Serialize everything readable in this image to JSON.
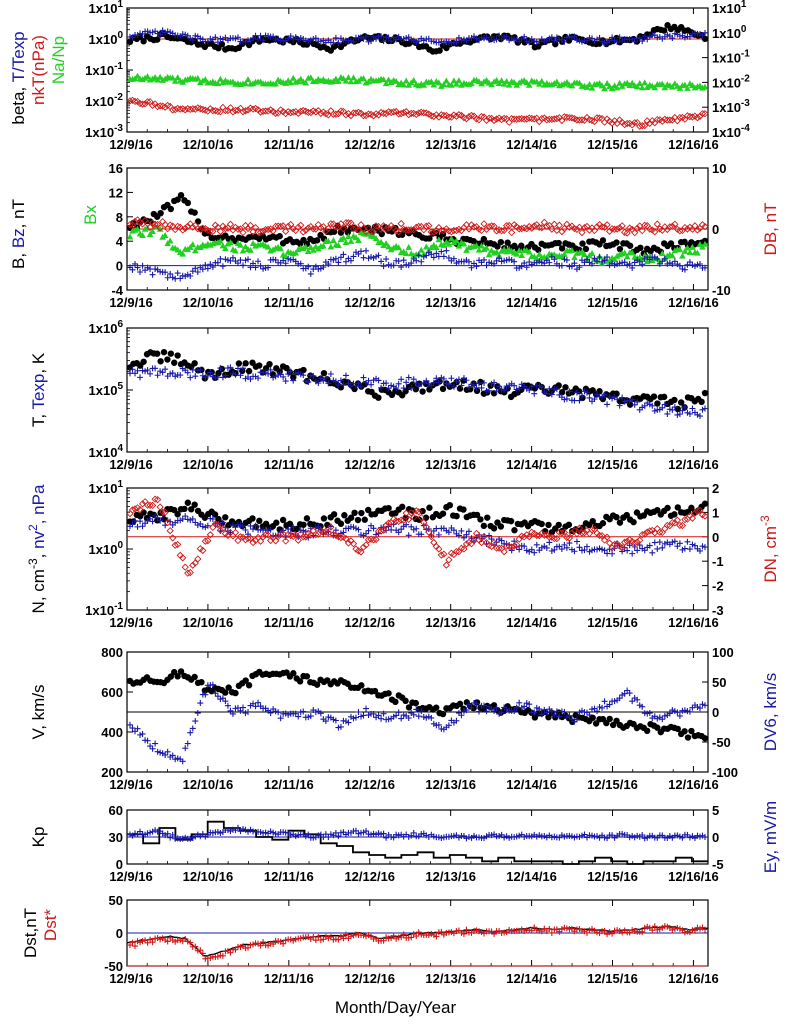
{
  "figure": {
    "x_title": "Month/Day/Year",
    "x_ticks": [
      "12/9/16",
      "12/10/16",
      "12/11/16",
      "12/12/16",
      "12/13/16",
      "12/14/16",
      "12/15/16",
      "12/16/16"
    ]
  },
  "colors": {
    "black": "#000000",
    "blue": "#1a1aa8",
    "red": "#d01818",
    "green": "#22d022"
  },
  "chart_data": [
    {
      "type": "scatter",
      "panel": "beta-temperature-ratio",
      "x_range": [
        "12/9/16",
        "12/16/16 ~04:00"
      ],
      "left_axis": {
        "scale": "log",
        "ticks": [
          "1x10-3",
          "1x10-2",
          "1x10-1",
          "1x100",
          "1x101"
        ],
        "ylim": [
          0.001,
          10
        ]
      },
      "right_axis": {
        "scale": "log",
        "ticks": [
          "1x10-4",
          "1x10-3",
          "1x10-2",
          "1x10-1",
          "1x100",
          "1x101"
        ],
        "ylim": [
          0.0001,
          10
        ]
      },
      "ylabel_parts": [
        {
          "text": "beta, ",
          "color": "black"
        },
        {
          "text": "T/Texp",
          "color": "blue"
        }
      ],
      "ylabel2_parts": [
        {
          "text": "nkT(nPa)",
          "color": "red"
        }
      ],
      "ylabel3_parts": [
        {
          "text": "Na/Np",
          "color": "green"
        }
      ],
      "reference_lines": [
        {
          "axis": "left",
          "value": 1,
          "color": "red"
        }
      ],
      "series": [
        {
          "marker": "dot",
          "color": "black",
          "axis": "left",
          "generator": "beta",
          "values": [
            0.9,
            1.2,
            0.7,
            0.5,
            1.0,
            0.8,
            0.5,
            1.1,
            0.9,
            0.4,
            0.9,
            1.2,
            0.6,
            1.0,
            0.8,
            1.0,
            2.5,
            1.1
          ]
        },
        {
          "marker": "plus",
          "color": "blue",
          "axis": "left",
          "generator": "tratio",
          "values": [
            1.3,
            1.6,
            1.0,
            0.9,
            1.1,
            1.0,
            0.9,
            1.0,
            1.0,
            0.8,
            1.0,
            1.1,
            0.9,
            1.0,
            0.9,
            1.0,
            1.2,
            1.3
          ]
        },
        {
          "marker": "triangle",
          "color": "green",
          "axis": "left",
          "generator": "nanp",
          "values": [
            0.055,
            0.05,
            0.045,
            0.042,
            0.04,
            0.045,
            0.05,
            0.045,
            0.04,
            0.035,
            0.04,
            0.038,
            0.04,
            0.035,
            0.03,
            0.032,
            0.03,
            0.03
          ]
        },
        {
          "marker": "diamond",
          "color": "red",
          "axis": "right",
          "generator": "nkt",
          "values": [
            0.002,
            0.001,
            0.0008,
            0.0008,
            0.0007,
            0.0006,
            0.0006,
            0.0005,
            0.0006,
            0.0005,
            0.0004,
            0.0003,
            0.0003,
            0.00035,
            0.0003,
            0.0002,
            0.0003,
            0.0005
          ]
        }
      ]
    },
    {
      "type": "scatter",
      "panel": "magnetic-field",
      "x_range": [
        "12/9/16",
        "12/16/16 ~04:00"
      ],
      "left_axis": {
        "scale": "linear",
        "ticks": [
          "-4",
          "0",
          "4",
          "8",
          "12",
          "16"
        ],
        "ylim": [
          -4,
          16
        ]
      },
      "right_axis": {
        "scale": "linear",
        "ticks": [
          "-10",
          "0",
          "10"
        ],
        "ylim": [
          -10,
          10
        ]
      },
      "ylabel_parts": [
        {
          "text": "B, ",
          "color": "black"
        },
        {
          "text": "Bz",
          "color": "blue"
        },
        {
          "text": ", nT",
          "color": "black"
        }
      ],
      "ylabel2_parts": [
        {
          "text": "Bx",
          "color": "green"
        }
      ],
      "right_label_parts": [
        {
          "text": "DB, nT",
          "color": "red"
        }
      ],
      "reference_lines": [
        {
          "axis": "left",
          "value": 0,
          "color": "blue"
        },
        {
          "axis": "left",
          "value": 6,
          "color": "red"
        }
      ],
      "series": [
        {
          "marker": "dot",
          "color": "black",
          "axis": "left",
          "values": [
            6.5,
            8,
            11,
            5,
            4.5,
            4.5,
            4.2,
            4,
            6,
            5.5,
            6,
            5,
            4.5,
            4,
            3.5,
            3,
            3.2,
            3,
            3.5,
            3,
            2.5,
            3.5,
            4
          ]
        },
        {
          "marker": "triangle",
          "color": "green",
          "axis": "left",
          "values": [
            5,
            6,
            2,
            4,
            3,
            3,
            2,
            3,
            4,
            5,
            3,
            2,
            4,
            3,
            2,
            2,
            1.5,
            2,
            1,
            2,
            1,
            2,
            3
          ]
        },
        {
          "marker": "plus",
          "color": "blue",
          "axis": "left",
          "values": [
            0,
            -1,
            -2,
            0,
            1,
            0,
            1,
            -1,
            1,
            2,
            0,
            1,
            2,
            0,
            1,
            0,
            1,
            0,
            1,
            0,
            1,
            0,
            0
          ]
        },
        {
          "marker": "diamond",
          "color": "red",
          "axis": "right",
          "values": [
            1,
            0.5,
            0.5,
            0.2,
            0.1,
            0,
            0.2,
            0.1,
            0.5,
            0.2,
            0.2,
            0.3,
            0,
            0.2,
            0.3,
            0,
            0.5,
            0,
            0.3,
            0,
            0.2,
            0.3,
            0.2
          ]
        }
      ]
    },
    {
      "type": "scatter",
      "panel": "temperature",
      "x_range": [
        "12/9/16",
        "12/16/16 ~04:00"
      ],
      "left_axis": {
        "scale": "log",
        "ticks": [
          "1x104",
          "1x105",
          "1x106"
        ],
        "ylim": [
          10000,
          1000000
        ]
      },
      "ylabel_parts": [
        {
          "text": "T, ",
          "color": "black"
        },
        {
          "text": "Texp",
          "color": "blue"
        },
        {
          "text": ", K",
          "color": "black"
        }
      ],
      "series": [
        {
          "marker": "dot",
          "color": "black",
          "axis": "left",
          "values": [
            250000,
            350000,
            300000,
            180000,
            200000,
            250000,
            200000,
            170000,
            150000,
            110000,
            90000,
            100000,
            120000,
            130000,
            110000,
            90000,
            100000,
            100000,
            90000,
            80000,
            70000,
            70000,
            60000,
            80000
          ]
        },
        {
          "marker": "plus",
          "color": "blue",
          "axis": "left",
          "values": [
            200000,
            190000,
            180000,
            190000,
            190000,
            180000,
            170000,
            160000,
            150000,
            140000,
            130000,
            130000,
            130000,
            130000,
            120000,
            110000,
            100000,
            90000,
            80000,
            70000,
            60000,
            50000,
            45000,
            45000
          ]
        }
      ]
    },
    {
      "type": "scatter",
      "panel": "density",
      "x_range": [
        "12/9/16",
        "12/16/16 ~04:00"
      ],
      "left_axis": {
        "scale": "log",
        "ticks": [
          "1x10-1",
          "1x100",
          "1x101"
        ],
        "ylim": [
          0.1,
          10
        ]
      },
      "right_axis": {
        "scale": "linear",
        "ticks": [
          "-3",
          "-2",
          "-1",
          "0",
          "1",
          "2"
        ],
        "ylim": [
          -3,
          2
        ]
      },
      "ylabel_parts": [
        {
          "text": "N, cm",
          "color": "black"
        },
        {
          "text": "-3",
          "color": "black",
          "sup": true
        },
        {
          "text": ", ",
          "color": "black"
        },
        {
          "text": "nv",
          "color": "blue"
        },
        {
          "text": "2",
          "color": "blue",
          "sup": true
        },
        {
          "text": ", nPa",
          "color": "blue"
        }
      ],
      "right_label_parts": [
        {
          "text": "DN, cm",
          "color": "red"
        },
        {
          "text": "-3",
          "color": "red",
          "sup": true
        }
      ],
      "reference_lines": [
        {
          "axis": "right",
          "value": 0,
          "color": "red"
        }
      ],
      "series": [
        {
          "marker": "dot",
          "color": "black",
          "axis": "left",
          "values": [
            3,
            3.5,
            5,
            3,
            2.8,
            2.5,
            2.6,
            3,
            3.5,
            4.5,
            3.5,
            4.5,
            3,
            2.5,
            2.5,
            2,
            2.5,
            3,
            3.5,
            4,
            4.5
          ]
        },
        {
          "marker": "plus",
          "color": "blue",
          "axis": "left",
          "values": [
            2.5,
            3,
            3,
            2.5,
            2,
            2,
            1.8,
            2,
            2,
            2.2,
            2,
            2,
            1.5,
            1.2,
            1,
            1.2,
            1,
            1,
            1,
            1.2,
            1
          ]
        },
        {
          "marker": "diamond",
          "color": "red",
          "axis": "right",
          "values": [
            1,
            1.5,
            -1.5,
            0.5,
            -0.2,
            0,
            0,
            0.3,
            -0.5,
            0.5,
            1,
            -1,
            0,
            -0.5,
            0.2,
            0,
            0.3,
            -0.5,
            0.2,
            0.5,
            1
          ]
        }
      ]
    },
    {
      "type": "scatter",
      "panel": "velocity",
      "x_range": [
        "12/9/16",
        "12/16/16 ~04:00"
      ],
      "left_axis": {
        "scale": "linear",
        "ticks": [
          "200",
          "400",
          "600",
          "800"
        ],
        "ylim": [
          200,
          800
        ]
      },
      "right_axis": {
        "scale": "linear",
        "ticks": [
          "-100",
          "-50",
          "0",
          "50",
          "100"
        ],
        "ylim": [
          -100,
          100
        ]
      },
      "ylabel_parts": [
        {
          "text": "V, km/s",
          "color": "black"
        }
      ],
      "right_label_parts": [
        {
          "text": "DV6, km/s",
          "color": "blue"
        }
      ],
      "reference_lines": [
        {
          "axis": "right",
          "value": 0,
          "color": "black"
        }
      ],
      "series": [
        {
          "marker": "dot",
          "color": "black",
          "axis": "left",
          "values": [
            660,
            650,
            700,
            610,
            600,
            690,
            680,
            660,
            640,
            620,
            580,
            520,
            500,
            540,
            520,
            500,
            480,
            470,
            460,
            440,
            420,
            400,
            380
          ]
        },
        {
          "marker": "plus",
          "color": "blue",
          "axis": "right",
          "values": [
            -20,
            -60,
            -80,
            50,
            0,
            10,
            -10,
            0,
            -20,
            0,
            -10,
            0,
            -30,
            10,
            0,
            10,
            0,
            -10,
            10,
            30,
            -10,
            0,
            10
          ]
        }
      ]
    },
    {
      "type": "line",
      "panel": "kp-ey",
      "x_range": [
        "12/9/16",
        "12/16/16 ~04:00"
      ],
      "left_axis": {
        "scale": "linear",
        "ticks": [
          "0",
          "30",
          "60"
        ],
        "ylim": [
          0,
          60
        ]
      },
      "right_axis": {
        "scale": "linear",
        "ticks": [
          "-5",
          "0",
          "5"
        ],
        "ylim": [
          -5,
          5
        ]
      },
      "ylabel_parts": [
        {
          "text": "Kp",
          "color": "black"
        }
      ],
      "right_label_parts": [
        {
          "text": "Ey, mV/m",
          "color": "blue"
        }
      ],
      "reference_lines": [
        {
          "axis": "right",
          "value": 0,
          "color": "blue"
        }
      ],
      "series": [
        {
          "marker": "step",
          "color": "black",
          "axis": "left",
          "values": [
            33,
            23,
            40,
            27,
            33,
            47,
            40,
            37,
            30,
            27,
            37,
            33,
            23,
            20,
            13,
            10,
            7,
            10,
            13,
            7,
            10,
            7,
            3,
            7,
            3,
            3,
            3,
            0,
            3,
            7,
            3,
            0,
            3,
            3,
            7,
            3
          ]
        },
        {
          "marker": "plus",
          "color": "blue",
          "axis": "right",
          "values": [
            0.5,
            1,
            -0.5,
            0.5,
            1.5,
            1,
            0.5,
            0,
            0.5,
            1,
            0,
            0.5,
            0,
            0,
            0.2,
            0.1,
            0,
            0.2,
            0,
            0.3,
            0,
            0.2,
            0
          ]
        }
      ]
    },
    {
      "type": "line",
      "panel": "dst",
      "x_range": [
        "12/9/16",
        "12/16/16 ~04:00"
      ],
      "left_axis": {
        "scale": "linear",
        "ticks": [
          "-50",
          "0",
          "50"
        ],
        "ylim": [
          -50,
          50
        ]
      },
      "ylabel_parts": [
        {
          "text": "Dst,nT",
          "color": "black"
        }
      ],
      "ylabel2_parts": [
        {
          "text": "Dst*",
          "color": "red"
        }
      ],
      "reference_lines": [
        {
          "axis": "left",
          "value": 0,
          "color": "blue"
        },
        {
          "axis": "left",
          "value": -50,
          "color": "red"
        }
      ],
      "series": [
        {
          "marker": "line",
          "color": "black",
          "axis": "left",
          "values": [
            -15,
            -10,
            -5,
            -8,
            -35,
            -28,
            -18,
            -15,
            -12,
            -8,
            -5,
            -5,
            0,
            -8,
            -5,
            0,
            0,
            3,
            5,
            2,
            5,
            8,
            5,
            8,
            5,
            3,
            5,
            8,
            10,
            5,
            8
          ]
        },
        {
          "marker": "plus",
          "color": "red",
          "axis": "left",
          "values": [
            -18,
            -12,
            -10,
            -12,
            -38,
            -30,
            -20,
            -17,
            -14,
            -10,
            -7,
            -7,
            -2,
            -10,
            -7,
            -2,
            -2,
            1,
            3,
            0,
            3,
            6,
            3,
            6,
            3,
            1,
            3,
            6,
            8,
            3,
            6
          ]
        }
      ]
    }
  ]
}
